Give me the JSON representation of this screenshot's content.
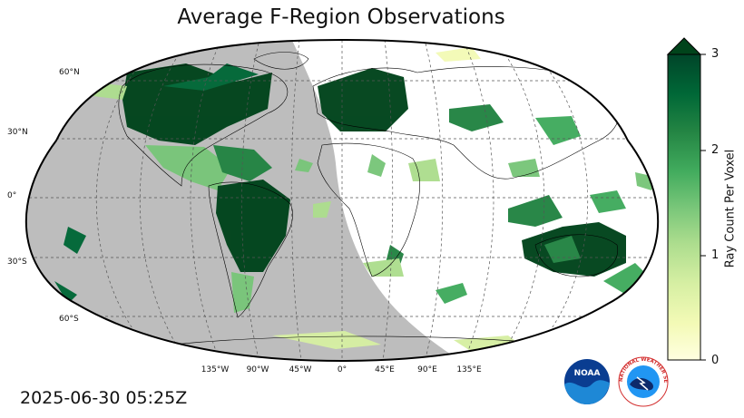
{
  "title": "Average F-Region Observations",
  "timestamp": "2025-06-30 05:25Z",
  "map": {
    "projection": "robinson",
    "night_shade_color": "#bdbdbd",
    "land_outline_color": "#000000",
    "gridline_style": "dashed",
    "lat_labels": [
      "60°N",
      "30°N",
      "0°",
      "30°S",
      "60°S"
    ],
    "lon_labels": [
      "135°W",
      "90°W",
      "45°W",
      "0°",
      "45°E",
      "90°E",
      "135°E"
    ]
  },
  "colorbar": {
    "label": "Ray Count Per Voxel",
    "ticks": [
      "0",
      "1",
      "2",
      "3"
    ],
    "min": 0,
    "max": 3,
    "extend": "max",
    "colormap": "YlGn",
    "colors": [
      "#ffffe0",
      "#f3fab6",
      "#d6efa3",
      "#addd8e",
      "#78c679",
      "#41ab5d",
      "#238443",
      "#006837",
      "#004529"
    ]
  },
  "logos": {
    "noaa": "NOAA",
    "nws_text": "NATIONAL WEATHER SERVICE"
  }
}
